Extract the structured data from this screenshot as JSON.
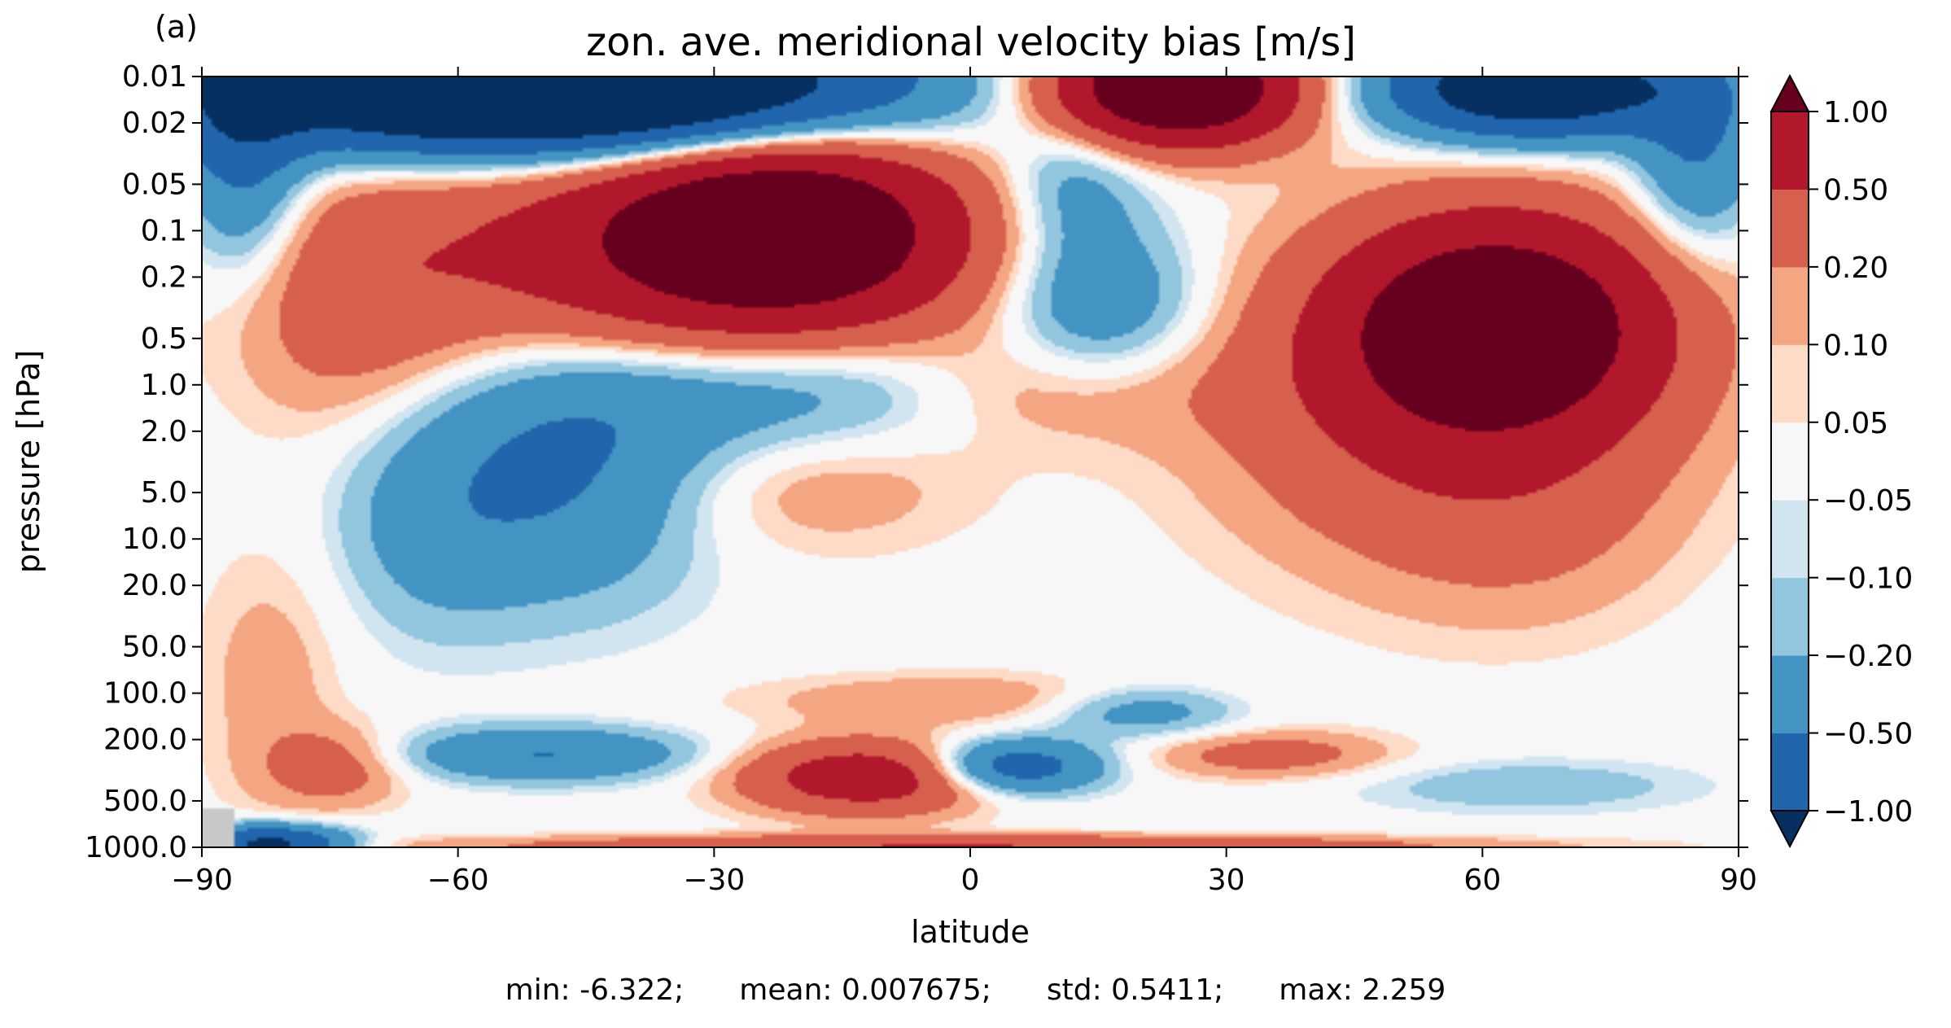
{
  "chart_data": {
    "type": "heatmap",
    "panel_label": "(a)",
    "title": "zon. ave. meridional velocity bias [m/s]",
    "xlabel": "latitude",
    "ylabel": "pressure [hPa]",
    "xlim": [
      -90,
      90
    ],
    "ylim": [
      1000.0,
      0.01
    ],
    "y_scale": "log",
    "x_ticks": [
      "−90",
      "−60",
      "−30",
      "0",
      "30",
      "60",
      "90"
    ],
    "x_tick_values": [
      -90,
      -60,
      -30,
      0,
      30,
      60,
      90
    ],
    "y_ticks": [
      "0.01",
      "0.02",
      "0.05",
      "0.1",
      "0.2",
      "0.5",
      "1.0",
      "2.0",
      "5.0",
      "10.0",
      "20.0",
      "50.0",
      "100.0",
      "200.0",
      "500.0",
      "1000.0"
    ],
    "y_tick_values": [
      0.01,
      0.02,
      0.05,
      0.1,
      0.2,
      0.5,
      1.0,
      2.0,
      5.0,
      10.0,
      20.0,
      50.0,
      100.0,
      200.0,
      500.0,
      1000.0
    ],
    "colorbar": {
      "levels": [
        -1.0,
        -0.5,
        -0.2,
        -0.1,
        -0.05,
        0.05,
        0.1,
        0.2,
        0.5,
        1.0
      ],
      "level_labels": [
        "−1.00",
        "−0.50",
        "−0.20",
        "−0.10",
        "−0.05",
        "0.05",
        "0.10",
        "0.20",
        "0.50",
        "1.00"
      ],
      "colors": [
        "#053061",
        "#2166ac",
        "#4393c3",
        "#92c5de",
        "#d1e5f0",
        "#f7f7f7",
        "#fddbc7",
        "#f4a582",
        "#d6604d",
        "#b2182b",
        "#67001f"
      ],
      "extend": "both"
    },
    "missing_color": "#c8c8c8",
    "features": [
      {
        "lat": -22,
        "p": 0.1,
        "value": 1.5,
        "sx": 14,
        "sy": 0.42
      },
      {
        "lat": -40,
        "p": 0.15,
        "value": 0.55,
        "sx": 24,
        "sy": 0.55
      },
      {
        "lat": -72,
        "p": 0.3,
        "value": 0.25,
        "sx": 10,
        "sy": 0.6
      },
      {
        "lat": -50,
        "p": 0.012,
        "value": -2.5,
        "sx": 26,
        "sy": 0.28
      },
      {
        "lat": -85,
        "p": 0.03,
        "value": -0.6,
        "sx": 5,
        "sy": 0.55
      },
      {
        "lat": -48,
        "p": 4.0,
        "value": -0.5,
        "sx": 12,
        "sy": 0.55
      },
      {
        "lat": -30,
        "p": 1.2,
        "value": -0.35,
        "sx": 18,
        "sy": 0.35
      },
      {
        "lat": -63,
        "p": 8.0,
        "value": -0.22,
        "sx": 8,
        "sy": 0.5
      },
      {
        "lat": -10,
        "p": 1.0,
        "value": -0.2,
        "sx": 14,
        "sy": 0.28
      },
      {
        "lat": -20,
        "p": 4.0,
        "value": 0.22,
        "sx": 14,
        "sy": 0.33
      },
      {
        "lat": 8,
        "p": 1.0,
        "value": 0.28,
        "sx": 14,
        "sy": 0.28
      },
      {
        "lat": 15,
        "p": 0.3,
        "value": -0.45,
        "sx": 8,
        "sy": 0.38
      },
      {
        "lat": 12,
        "p": 0.05,
        "value": -0.3,
        "sx": 6,
        "sy": 0.3
      },
      {
        "lat": 24,
        "p": 0.012,
        "value": 1.8,
        "sx": 10,
        "sy": 0.25
      },
      {
        "lat": 62,
        "p": 0.4,
        "value": 1.5,
        "sx": 13,
        "sy": 0.48
      },
      {
        "lat": 55,
        "p": 1.5,
        "value": 0.45,
        "sx": 18,
        "sy": 0.7
      },
      {
        "lat": 66,
        "p": 0.012,
        "value": -1.6,
        "sx": 12,
        "sy": 0.22
      },
      {
        "lat": 85,
        "p": 0.03,
        "value": -0.5,
        "sx": 5,
        "sy": 0.45
      },
      {
        "lat": 65,
        "p": 8.0,
        "value": 0.12,
        "sx": 12,
        "sy": 0.5
      },
      {
        "lat": -82,
        "p": 80.0,
        "value": 0.15,
        "sx": 6,
        "sy": 0.6
      },
      {
        "lat": -74,
        "p": 300.0,
        "value": 0.3,
        "sx": 6,
        "sy": 0.18
      },
      {
        "lat": -50,
        "p": 250.0,
        "value": -0.5,
        "sx": 12,
        "sy": 0.12
      },
      {
        "lat": -12,
        "p": 350.0,
        "value": 0.8,
        "sx": 10,
        "sy": 0.16
      },
      {
        "lat": 5,
        "p": 300.0,
        "value": -0.8,
        "sx": 7,
        "sy": 0.12
      },
      {
        "lat": 0,
        "p": 110.0,
        "value": 0.2,
        "sx": 18,
        "sy": 0.12
      },
      {
        "lat": 20,
        "p": 130.0,
        "value": -0.35,
        "sx": 8,
        "sy": 0.12
      },
      {
        "lat": 35,
        "p": 250.0,
        "value": 0.3,
        "sx": 10,
        "sy": 0.11
      },
      {
        "lat": 65,
        "p": 400.0,
        "value": -0.18,
        "sx": 14,
        "sy": 0.12
      },
      {
        "lat": -82,
        "p": 950.0,
        "value": -1.2,
        "sx": 6,
        "sy": 0.08
      },
      {
        "lat": 0,
        "p": 980.0,
        "value": 0.5,
        "sx": 40,
        "sy": 0.05
      }
    ]
  },
  "stats": {
    "min": "min: -6.322;",
    "mean": "mean: 0.007675;",
    "std": "std: 0.5411;",
    "max": "max: 2.259"
  }
}
